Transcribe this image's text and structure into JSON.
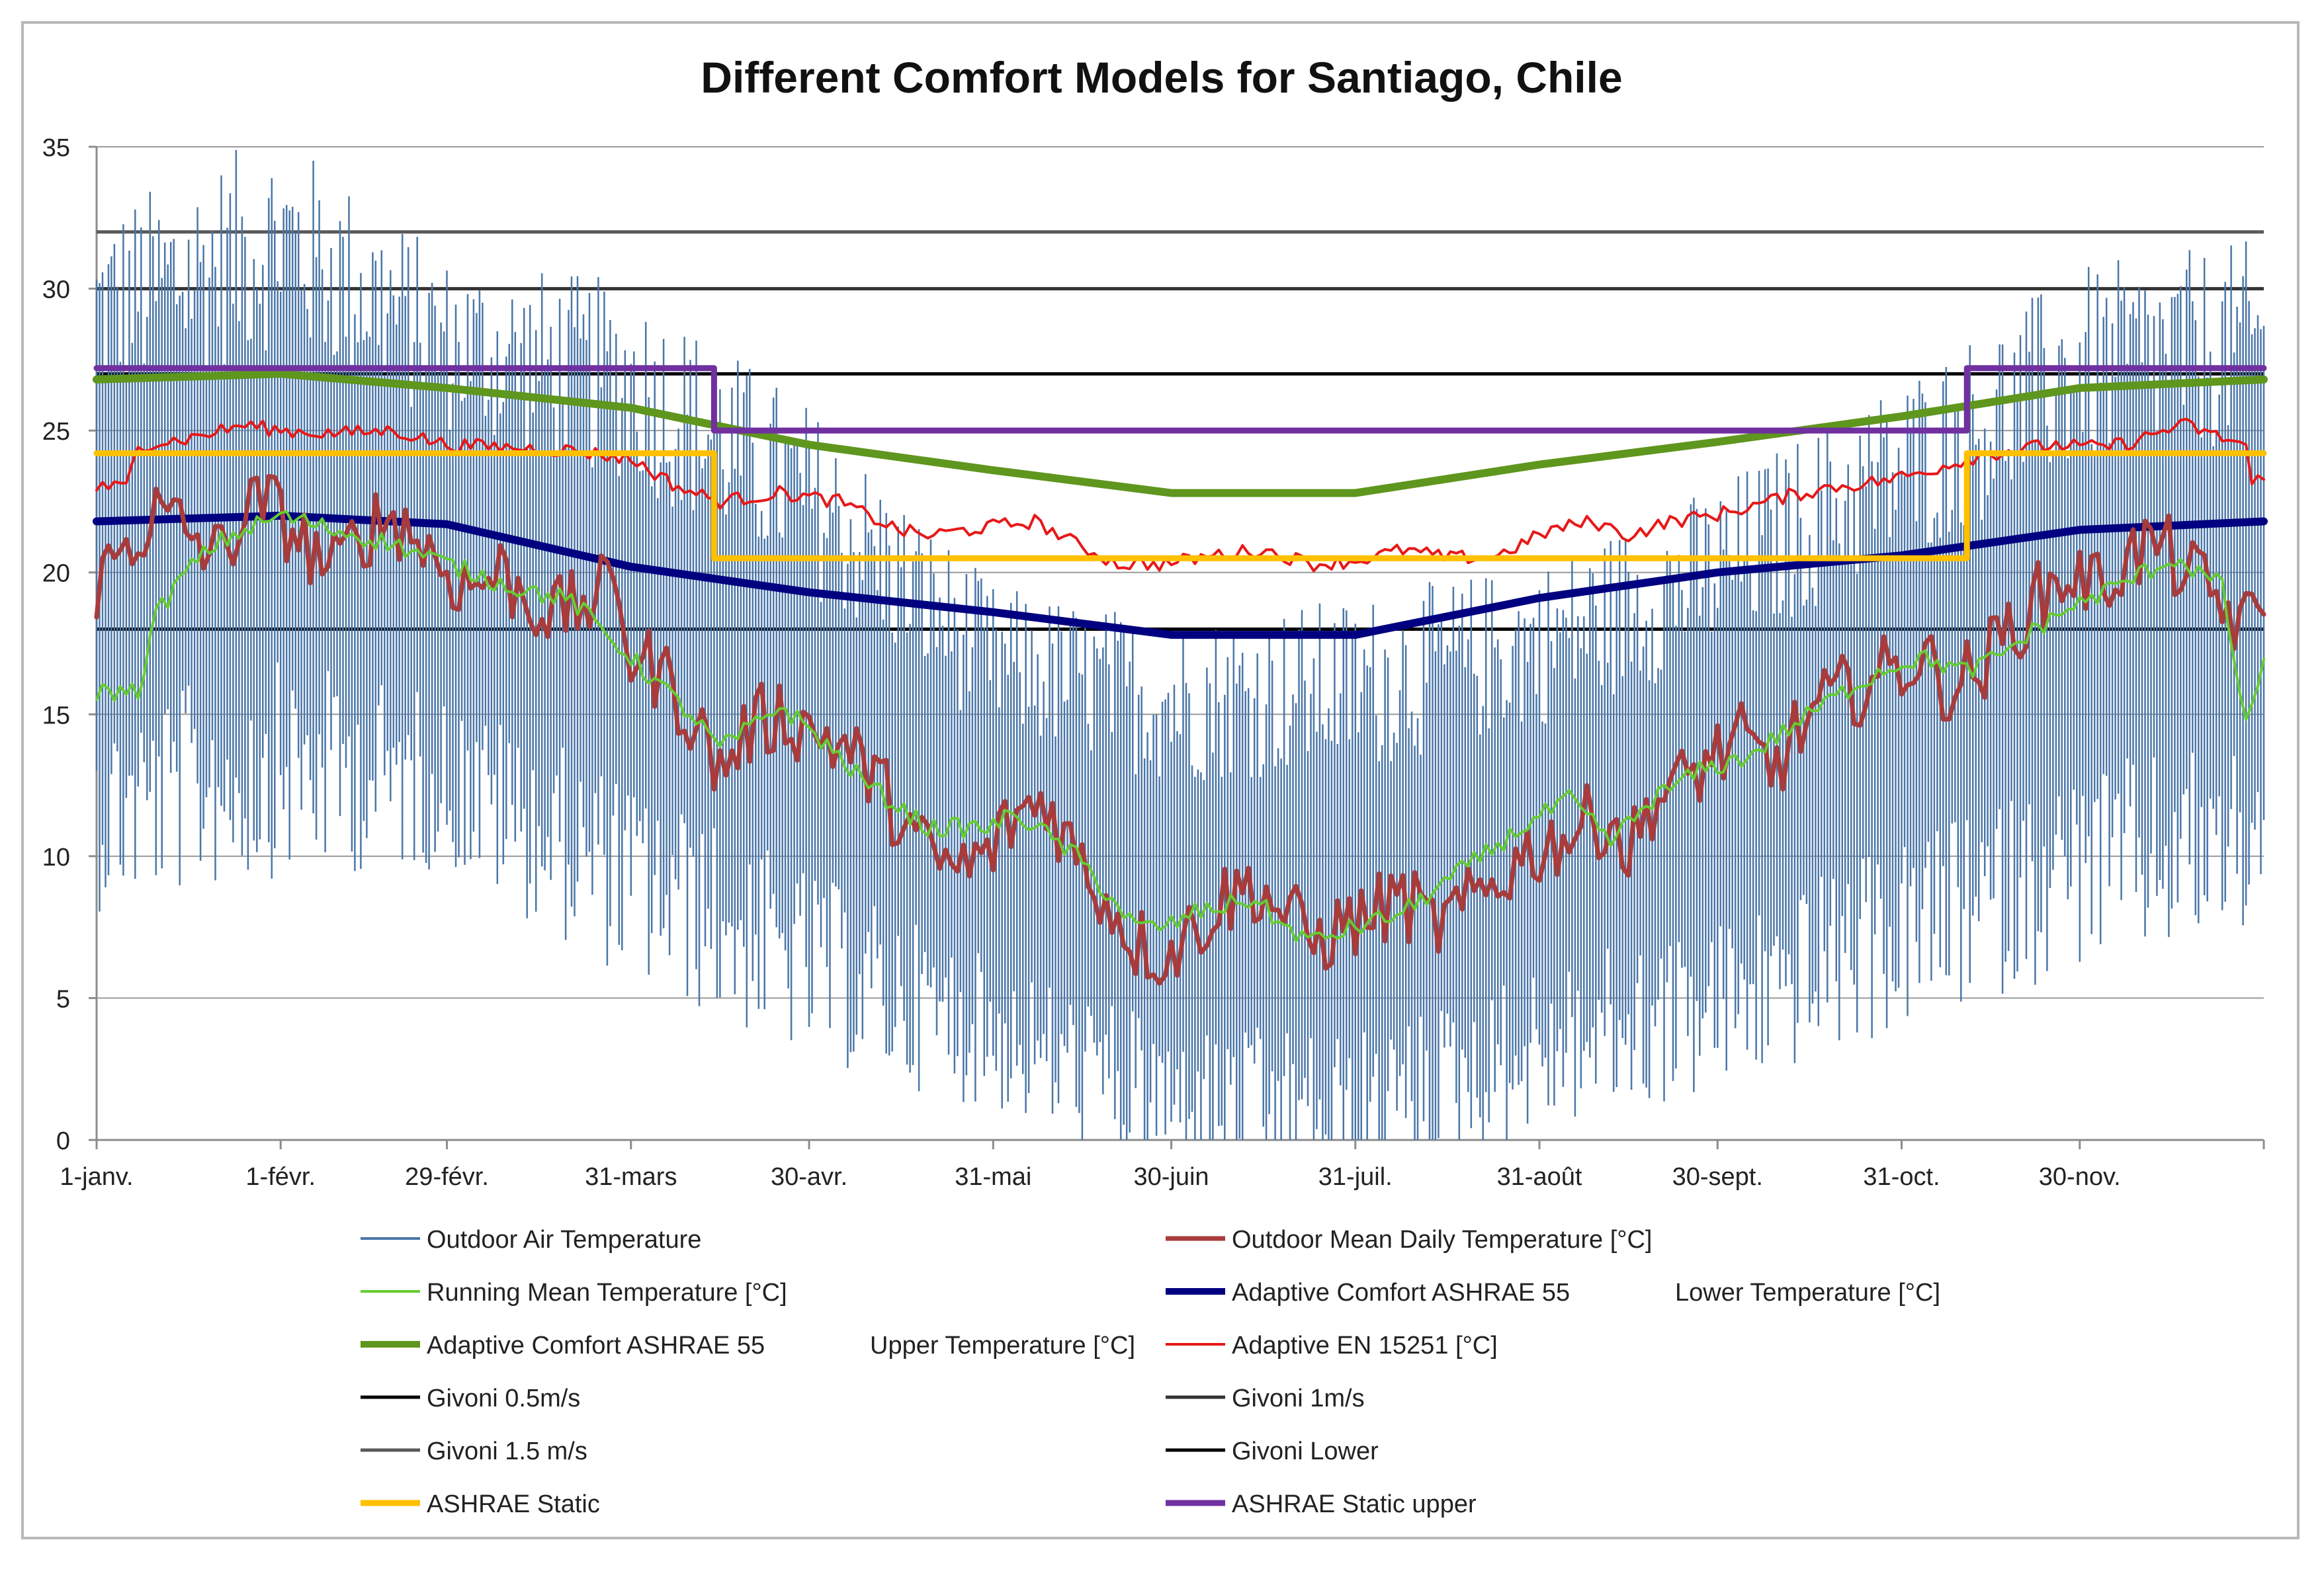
{
  "chart_data": {
    "type": "line",
    "title": "Different Comfort Models for Santiago, Chile",
    "xlabel": "",
    "ylabel": "",
    "ylim": [
      0,
      35
    ],
    "yticks": [
      0,
      5,
      10,
      15,
      20,
      25,
      30,
      35
    ],
    "xlim_day": [
      0,
      365
    ],
    "xticks": [
      {
        "label": "1-janv.",
        "day": 0
      },
      {
        "label": "1-févr.",
        "day": 31
      },
      {
        "label": "29-févr.",
        "day": 59
      },
      {
        "label": "31-mars",
        "day": 90
      },
      {
        "label": "30-avr.",
        "day": 120
      },
      {
        "label": "31-mai",
        "day": 151
      },
      {
        "label": "30-juin",
        "day": 181
      },
      {
        "label": "31-juil.",
        "day": 212
      },
      {
        "label": "31-août",
        "day": 243
      },
      {
        "label": "30-sept.",
        "day": 273
      },
      {
        "label": "31-oct.",
        "day": 304
      },
      {
        "label": "30-nov.",
        "day": 334
      }
    ],
    "grid": "horizontal",
    "legend_position": "bottom",
    "series": [
      {
        "key": "outdoor_air",
        "name": "Outdoor Air Temperature",
        "color": "#4a76a8",
        "kind": "daily-range",
        "day_mean_points": [
          [
            0,
            20
          ],
          [
            31,
            22
          ],
          [
            59,
            20
          ],
          [
            90,
            17.5
          ],
          [
            120,
            14
          ],
          [
            151,
            10
          ],
          [
            181,
            8
          ],
          [
            212,
            8
          ],
          [
            243,
            10
          ],
          [
            273,
            12
          ],
          [
            304,
            15
          ],
          [
            334,
            18
          ],
          [
            365,
            19
          ]
        ],
        "amplitude_points": [
          [
            0,
            16
          ],
          [
            31,
            17
          ],
          [
            59,
            14
          ],
          [
            90,
            16
          ],
          [
            120,
            15
          ],
          [
            151,
            12
          ],
          [
            181,
            13
          ],
          [
            212,
            14
          ],
          [
            243,
            13
          ],
          [
            273,
            14
          ],
          [
            304,
            15
          ],
          [
            334,
            16
          ],
          [
            365,
            16
          ]
        ]
      },
      {
        "key": "mean_daily",
        "name": "Outdoor Mean Daily Temperature [°C]",
        "color": "#a83c3c",
        "kind": "line",
        "points": [
          [
            0,
            19.5
          ],
          [
            5,
            21
          ],
          [
            10,
            22
          ],
          [
            15,
            21.5
          ],
          [
            20,
            20.5
          ],
          [
            25,
            22
          ],
          [
            28,
            22.5
          ],
          [
            31,
            22
          ],
          [
            35,
            21
          ],
          [
            40,
            20
          ],
          [
            45,
            21.5
          ],
          [
            50,
            22
          ],
          [
            55,
            21
          ],
          [
            59,
            20
          ],
          [
            63,
            19.5
          ],
          [
            68,
            20
          ],
          [
            73,
            19
          ],
          [
            78,
            18.5
          ],
          [
            83,
            19
          ],
          [
            88,
            19.5
          ],
          [
            90,
            17
          ],
          [
            95,
            16.5
          ],
          [
            100,
            15
          ],
          [
            105,
            13
          ],
          [
            110,
            14.5
          ],
          [
            115,
            15
          ],
          [
            120,
            14.5
          ],
          [
            125,
            14
          ],
          [
            130,
            13
          ],
          [
            135,
            11.5
          ],
          [
            140,
            10
          ],
          [
            145,
            9.5
          ],
          [
            150,
            10
          ],
          [
            155,
            11.5
          ],
          [
            160,
            12
          ],
          [
            165,
            10
          ],
          [
            170,
            8.5
          ],
          [
            175,
            7
          ],
          [
            180,
            6.5
          ],
          [
            185,
            7.5
          ],
          [
            190,
            8.5
          ],
          [
            195,
            9
          ],
          [
            200,
            8
          ],
          [
            205,
            7
          ],
          [
            210,
            7.5
          ],
          [
            215,
            8
          ],
          [
            220,
            8.5
          ],
          [
            225,
            7.5
          ],
          [
            230,
            8
          ],
          [
            235,
            9
          ],
          [
            240,
            10
          ],
          [
            245,
            10.5
          ],
          [
            250,
            11
          ],
          [
            255,
            11.5
          ],
          [
            258,
            10
          ],
          [
            262,
            12
          ],
          [
            267,
            12.5
          ],
          [
            272,
            13.5
          ],
          [
            277,
            14
          ],
          [
            282,
            13
          ],
          [
            287,
            14.5
          ],
          [
            292,
            15.5
          ],
          [
            297,
            16
          ],
          [
            302,
            16.5
          ],
          [
            307,
            17
          ],
          [
            312,
            16
          ],
          [
            317,
            16.5
          ],
          [
            322,
            18
          ],
          [
            327,
            19
          ],
          [
            332,
            20
          ],
          [
            337,
            19.5
          ],
          [
            342,
            20.5
          ],
          [
            347,
            21
          ],
          [
            352,
            20
          ],
          [
            357,
            19
          ],
          [
            362,
            18
          ],
          [
            365,
            19
          ]
        ]
      },
      {
        "key": "running_mean",
        "name": "Running Mean Temperature [°C]",
        "color": "#66cc33",
        "kind": "line",
        "points": [
          [
            0,
            15.8
          ],
          [
            7,
            15.8
          ],
          [
            10,
            18.5
          ],
          [
            15,
            20
          ],
          [
            20,
            21
          ],
          [
            25,
            21.5
          ],
          [
            31,
            22
          ],
          [
            40,
            21.5
          ],
          [
            50,
            21
          ],
          [
            59,
            20.3
          ],
          [
            70,
            19.5
          ],
          [
            80,
            19
          ],
          [
            90,
            17
          ],
          [
            100,
            15
          ],
          [
            105,
            13.8
          ],
          [
            110,
            14.5
          ],
          [
            115,
            15.3
          ],
          [
            120,
            14.5
          ],
          [
            130,
            12.5
          ],
          [
            140,
            11
          ],
          [
            150,
            11
          ],
          [
            155,
            11.5
          ],
          [
            165,
            10
          ],
          [
            175,
            7.5
          ],
          [
            180,
            7.5
          ],
          [
            185,
            8
          ],
          [
            195,
            8.5
          ],
          [
            200,
            7.5
          ],
          [
            205,
            7
          ],
          [
            212,
            7.5
          ],
          [
            220,
            8
          ],
          [
            230,
            9.5
          ],
          [
            240,
            11
          ],
          [
            248,
            12
          ],
          [
            255,
            10.5
          ],
          [
            262,
            12
          ],
          [
            270,
            13
          ],
          [
            278,
            13.5
          ],
          [
            285,
            14.5
          ],
          [
            292,
            15.5
          ],
          [
            300,
            16.5
          ],
          [
            307,
            17
          ],
          [
            315,
            16.5
          ],
          [
            320,
            17
          ],
          [
            330,
            18.5
          ],
          [
            340,
            19.5
          ],
          [
            350,
            20.5
          ],
          [
            358,
            19.5
          ],
          [
            362,
            14.5
          ],
          [
            365,
            17
          ]
        ]
      },
      {
        "key": "ashrae_lower",
        "name": "Adaptive Comfort ASHRAE 55",
        "name_suffix": "Lower Temperature  [°C]",
        "color": "#000080",
        "kind": "line",
        "points": [
          [
            0,
            21.8
          ],
          [
            31,
            22
          ],
          [
            59,
            21.7
          ],
          [
            90,
            20.2
          ],
          [
            120,
            19.3
          ],
          [
            151,
            18.6
          ],
          [
            181,
            17.8
          ],
          [
            212,
            17.8
          ],
          [
            243,
            19.1
          ],
          [
            273,
            20.0
          ],
          [
            304,
            20.6
          ],
          [
            334,
            21.5
          ],
          [
            365,
            21.8
          ]
        ]
      },
      {
        "key": "ashrae_upper",
        "name": "Adaptive Comfort ASHRAE 55",
        "name_suffix": "Upper Temperature  [°C]",
        "color": "#5f961e",
        "kind": "line",
        "points": [
          [
            0,
            26.8
          ],
          [
            31,
            27.0
          ],
          [
            59,
            26.5
          ],
          [
            90,
            25.8
          ],
          [
            120,
            24.5
          ],
          [
            151,
            23.6
          ],
          [
            181,
            22.8
          ],
          [
            212,
            22.8
          ],
          [
            243,
            23.8
          ],
          [
            273,
            24.6
          ],
          [
            304,
            25.5
          ],
          [
            334,
            26.5
          ],
          [
            365,
            26.8
          ]
        ]
      },
      {
        "key": "en15251",
        "name": "Adaptive EN 15251  [°C]",
        "color": "#e81818",
        "kind": "line",
        "points": [
          [
            0,
            23
          ],
          [
            5,
            23
          ],
          [
            7,
            24.5
          ],
          [
            15,
            24.7
          ],
          [
            25,
            25.2
          ],
          [
            31,
            25
          ],
          [
            40,
            24.9
          ],
          [
            50,
            25
          ],
          [
            59,
            24.5
          ],
          [
            70,
            24.4
          ],
          [
            80,
            24.3
          ],
          [
            90,
            24
          ],
          [
            98,
            23
          ],
          [
            105,
            22.5
          ],
          [
            115,
            22.8
          ],
          [
            125,
            22.5
          ],
          [
            130,
            22
          ],
          [
            135,
            21.5
          ],
          [
            140,
            21.3
          ],
          [
            150,
            21.6
          ],
          [
            158,
            21.8
          ],
          [
            165,
            21
          ],
          [
            172,
            20.3
          ],
          [
            180,
            20.3
          ],
          [
            188,
            20.6
          ],
          [
            196,
            20.8
          ],
          [
            205,
            20.3
          ],
          [
            212,
            20.4
          ],
          [
            220,
            20.8
          ],
          [
            228,
            20.5
          ],
          [
            236,
            20.6
          ],
          [
            245,
            21.5
          ],
          [
            252,
            21.8
          ],
          [
            258,
            21.3
          ],
          [
            265,
            21.8
          ],
          [
            272,
            22
          ],
          [
            278,
            22.3
          ],
          [
            285,
            22.7
          ],
          [
            292,
            23
          ],
          [
            300,
            23.2
          ],
          [
            307,
            23.5
          ],
          [
            315,
            24
          ],
          [
            322,
            24.3
          ],
          [
            330,
            24.5
          ],
          [
            337,
            24.4
          ],
          [
            343,
            24.6
          ],
          [
            348,
            25
          ],
          [
            352,
            25.2
          ],
          [
            357,
            24.8
          ],
          [
            362,
            24.5
          ],
          [
            363,
            23
          ],
          [
            365,
            23.5
          ]
        ]
      },
      {
        "key": "givoni_05",
        "name": "Givoni      0.5m/s",
        "color": "#000000",
        "kind": "constant",
        "value": 27
      },
      {
        "key": "givoni_1",
        "name": "Givoni      1m/s",
        "color": "#333333",
        "kind": "constant",
        "value": 30
      },
      {
        "key": "givoni_15",
        "name": "Givoni 1.5 m/s",
        "color": "#595959",
        "kind": "constant",
        "value": 32
      },
      {
        "key": "givoni_lower",
        "name": "Givoni Lower",
        "color": "#000000",
        "kind": "constant",
        "value": 18
      },
      {
        "key": "ashrae_static",
        "name": "ASHRAE Static",
        "color": "#ffc000",
        "kind": "step",
        "points": [
          [
            0,
            24.2
          ],
          [
            104,
            24.2
          ],
          [
            104,
            20.5
          ],
          [
            315,
            20.5
          ],
          [
            315,
            24.2
          ],
          [
            365,
            24.2
          ]
        ]
      },
      {
        "key": "ashrae_static_upper",
        "name": "ASHRAE Static upper",
        "color": "#7030a0",
        "kind": "step",
        "points": [
          [
            0,
            27.2
          ],
          [
            104,
            27.2
          ],
          [
            104,
            25
          ],
          [
            315,
            25
          ],
          [
            315,
            27.2
          ],
          [
            365,
            27.2
          ]
        ]
      }
    ]
  }
}
